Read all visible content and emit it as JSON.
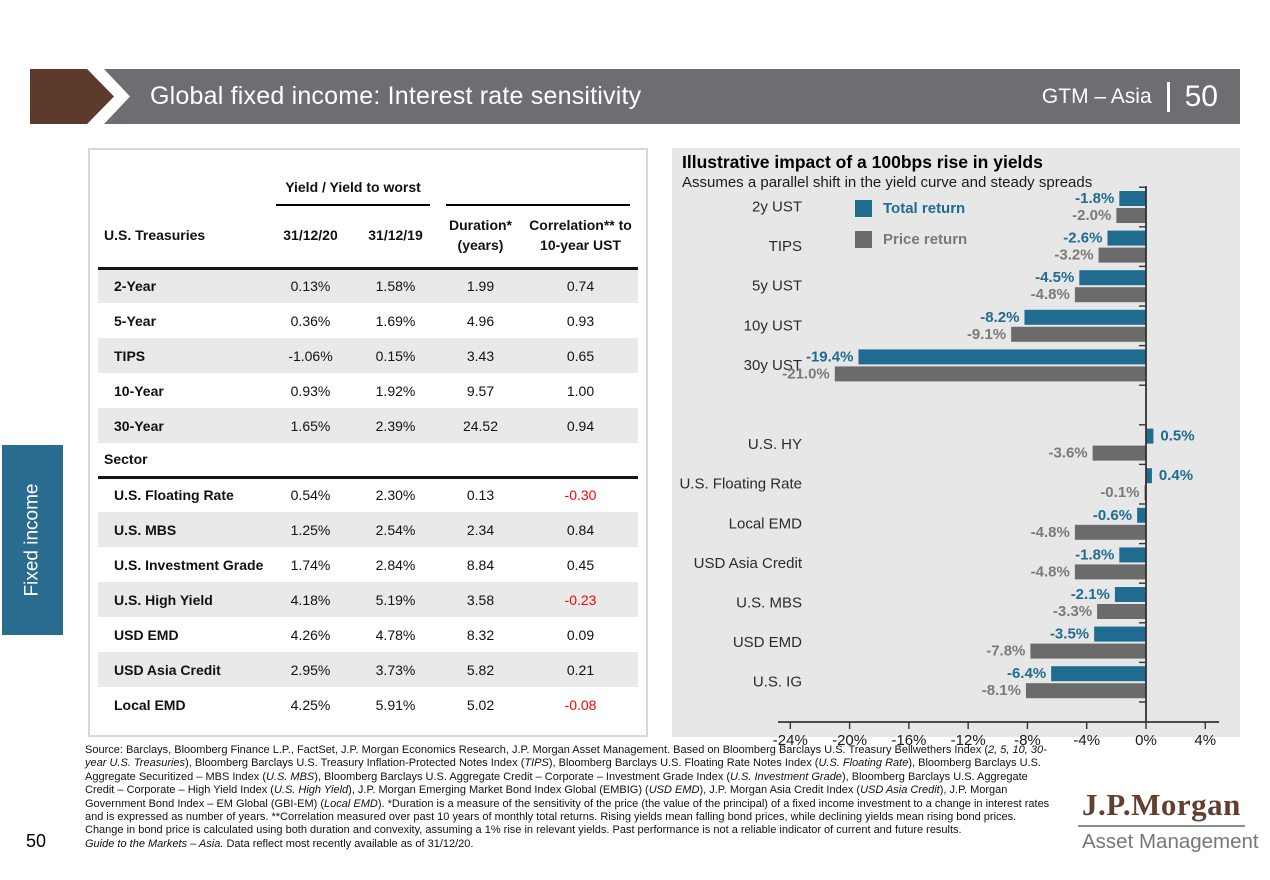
{
  "page": {
    "number": "50"
  },
  "header": {
    "title": "Global fixed income: Interest rate sensitivity",
    "brand": "GTM – Asia",
    "page": "50"
  },
  "sidebar": {
    "label": "Fixed income"
  },
  "colors": {
    "accent_blue": "#1F6C90",
    "bar_gray": "#6B6B6B",
    "gray_label": "#7A7A7A",
    "panel_bg": "#E7E7E7",
    "header_gray": "#6D6E71",
    "arrow_brown": "#5C3B2D",
    "tab_blue": "#2A6C8F",
    "negative_red": "#FF0000",
    "logo_brown": "#62402F",
    "logo_gray": "#76777A"
  },
  "table": {
    "group_header": "Yield / Yield to worst",
    "columns": [
      "U.S. Treasuries",
      "31/12/20",
      "31/12/19",
      "Duration*\n(years)",
      "Correlation** to\n10-year UST"
    ],
    "treasuries": [
      [
        "2-Year",
        "0.13%",
        "1.58%",
        "1.99",
        "0.74"
      ],
      [
        "5-Year",
        "0.36%",
        "1.69%",
        "4.96",
        "0.93"
      ],
      [
        "TIPS",
        "-1.06%",
        "0.15%",
        "3.43",
        "0.65"
      ],
      [
        "10-Year",
        "0.93%",
        "1.92%",
        "9.57",
        "1.00"
      ],
      [
        "30-Year",
        "1.65%",
        "2.39%",
        "24.52",
        "0.94"
      ]
    ],
    "sector_header": "Sector",
    "sectors": [
      [
        "U.S. Floating Rate",
        "0.54%",
        "2.30%",
        "0.13",
        "-0.30"
      ],
      [
        "U.S. MBS",
        "1.25%",
        "2.54%",
        "2.34",
        "0.84"
      ],
      [
        "U.S. Investment Grade",
        "1.74%",
        "2.84%",
        "8.84",
        "0.45"
      ],
      [
        "U.S. High Yield",
        "4.18%",
        "5.19%",
        "3.58",
        "-0.23"
      ],
      [
        "USD EMD",
        "4.26%",
        "4.78%",
        "8.32",
        "0.09"
      ],
      [
        "USD Asia Credit",
        "2.95%",
        "3.73%",
        "5.82",
        "0.21"
      ],
      [
        "Local EMD",
        "4.25%",
        "5.91%",
        "5.02",
        "-0.08"
      ]
    ]
  },
  "chart_data": {
    "type": "bar",
    "orientation": "horizontal",
    "title": "Illustrative impact of a 100bps rise in yields",
    "subtitle": "Assumes a parallel shift in the yield curve and steady spreads",
    "categories": [
      "2y UST",
      "TIPS",
      "5y UST",
      "10y UST",
      "30y UST",
      "U.S. HY",
      "U.S. Floating Rate",
      "Local EMD",
      "USD Asia Credit",
      "U.S. MBS",
      "USD EMD",
      "U.S. IG"
    ],
    "series": [
      {
        "name": "Total return",
        "color": "#1F6C90",
        "label_color": "#1F6C90",
        "values": [
          -1.8,
          -2.6,
          -4.5,
          -8.2,
          -19.4,
          0.5,
          0.4,
          -0.6,
          -1.8,
          -2.1,
          -3.5,
          -6.4
        ]
      },
      {
        "name": "Price return",
        "color": "#6B6B6B",
        "label_color": "#7A7A7A",
        "values": [
          -2.0,
          -3.2,
          -4.8,
          -9.1,
          -21.0,
          -3.6,
          -0.1,
          -4.8,
          -4.8,
          -3.3,
          -7.8,
          -8.1
        ]
      }
    ],
    "x_ticks": [
      "-24%",
      "-20%",
      "-16%",
      "-12%",
      "-8%",
      "-4%",
      "0%",
      "4%"
    ],
    "xlim": [
      -24,
      4
    ],
    "gap_after_category": "30y UST",
    "grid": false,
    "legend_position": "top-left-inside",
    "value_labels": "outside-end, one decimal, percent"
  },
  "footnote": {
    "segments": [
      {
        "t": "Source: Barclays, Bloomberg Finance L.P., FactSet, J.P. Morgan Economics Research, J.P. Morgan Asset Management. Based on Bloomberg Barclays U.S. Treasury Bellwethers Index ("
      },
      {
        "t": "2, 5, 10, 30-year U.S. Treasuries",
        "i": true
      },
      {
        "t": "), Bloomberg Barclays U.S. Treasury Inflation-Protected Notes Index ("
      },
      {
        "t": "TIPS",
        "i": true
      },
      {
        "t": "), Bloomberg Barclays U.S. Floating Rate Notes Index ("
      },
      {
        "t": "U.S. Floating Rate",
        "i": true
      },
      {
        "t": "), Bloomberg Barclays U.S. Aggregate Securitized – MBS Index ("
      },
      {
        "t": "U.S. MBS",
        "i": true
      },
      {
        "t": "), Bloomberg Barclays U.S. Aggregate Credit – Corporate – Investment Grade Index ("
      },
      {
        "t": "U.S. Investment Grade",
        "i": true
      },
      {
        "t": "), Bloomberg Barclays U.S. Aggregate Credit – Corporate – High Yield Index ("
      },
      {
        "t": "U.S. High Yield",
        "i": true
      },
      {
        "t": "), J.P. Morgan Emerging Market Bond Index Global (EMBIG) ("
      },
      {
        "t": "USD EMD",
        "i": true
      },
      {
        "t": "), J.P. Morgan Asia Credit Index ("
      },
      {
        "t": "USD Asia Credit",
        "i": true
      },
      {
        "t": "), J.P. Morgan Government Bond Index – EM Global (GBI-EM) ("
      },
      {
        "t": "Local EMD",
        "i": true
      },
      {
        "t": "). *Duration is a measure of the sensitivity of the price (the value of the principal) of a fixed income investment to a change in interest rates and is expressed as number of years. **Correlation measured over past 10 years of monthly total returns. Rising yields mean falling bond prices, while declining yields mean rising bond prices. Change in bond price is calculated using both duration and convexity, assuming a 1% rise in relevant yields. Past performance is not a reliable indicator of current and future results."
      },
      {
        "t": "Guide to the Markets – Asia.",
        "i": true,
        "br": true
      },
      {
        "t": " Data reflect most recently available as of 31/12/20."
      }
    ]
  },
  "logo": {
    "name": "J.P.Morgan",
    "sub": "Asset Management"
  }
}
